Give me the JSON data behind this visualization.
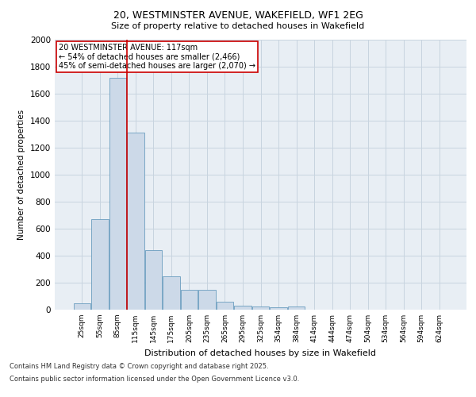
{
  "title1": "20, WESTMINSTER AVENUE, WAKEFIELD, WF1 2EG",
  "title2": "Size of property relative to detached houses in Wakefield",
  "xlabel": "Distribution of detached houses by size in Wakefield",
  "ylabel": "Number of detached properties",
  "categories": [
    "25sqm",
    "55sqm",
    "85sqm",
    "115sqm",
    "145sqm",
    "175sqm",
    "205sqm",
    "235sqm",
    "265sqm",
    "295sqm",
    "325sqm",
    "354sqm",
    "384sqm",
    "414sqm",
    "444sqm",
    "474sqm",
    "504sqm",
    "534sqm",
    "564sqm",
    "594sqm",
    "624sqm"
  ],
  "values": [
    45,
    670,
    1720,
    1310,
    440,
    250,
    150,
    150,
    60,
    30,
    25,
    20,
    25,
    0,
    0,
    0,
    0,
    0,
    0,
    0,
    0
  ],
  "bar_color": "#ccd9e8",
  "bar_edge_color": "#6a9dbf",
  "vline_x": 2.5,
  "vline_color": "#cc0000",
  "annotation_text": "20 WESTMINSTER AVENUE: 117sqm\n← 54% of detached houses are smaller (2,466)\n45% of semi-detached houses are larger (2,070) →",
  "annotation_box_color": "#cc0000",
  "ylim": [
    0,
    2000
  ],
  "yticks": [
    0,
    200,
    400,
    600,
    800,
    1000,
    1200,
    1400,
    1600,
    1800,
    2000
  ],
  "grid_color": "#c8d4df",
  "footer1": "Contains HM Land Registry data © Crown copyright and database right 2025.",
  "footer2": "Contains public sector information licensed under the Open Government Licence v3.0.",
  "bg_color": "#e8eef4",
  "title1_fontsize": 9,
  "title2_fontsize": 8,
  "ylabel_fontsize": 7.5,
  "xlabel_fontsize": 8,
  "ytick_fontsize": 7.5,
  "xtick_fontsize": 6.5,
  "ann_fontsize": 7,
  "footer_fontsize": 6
}
